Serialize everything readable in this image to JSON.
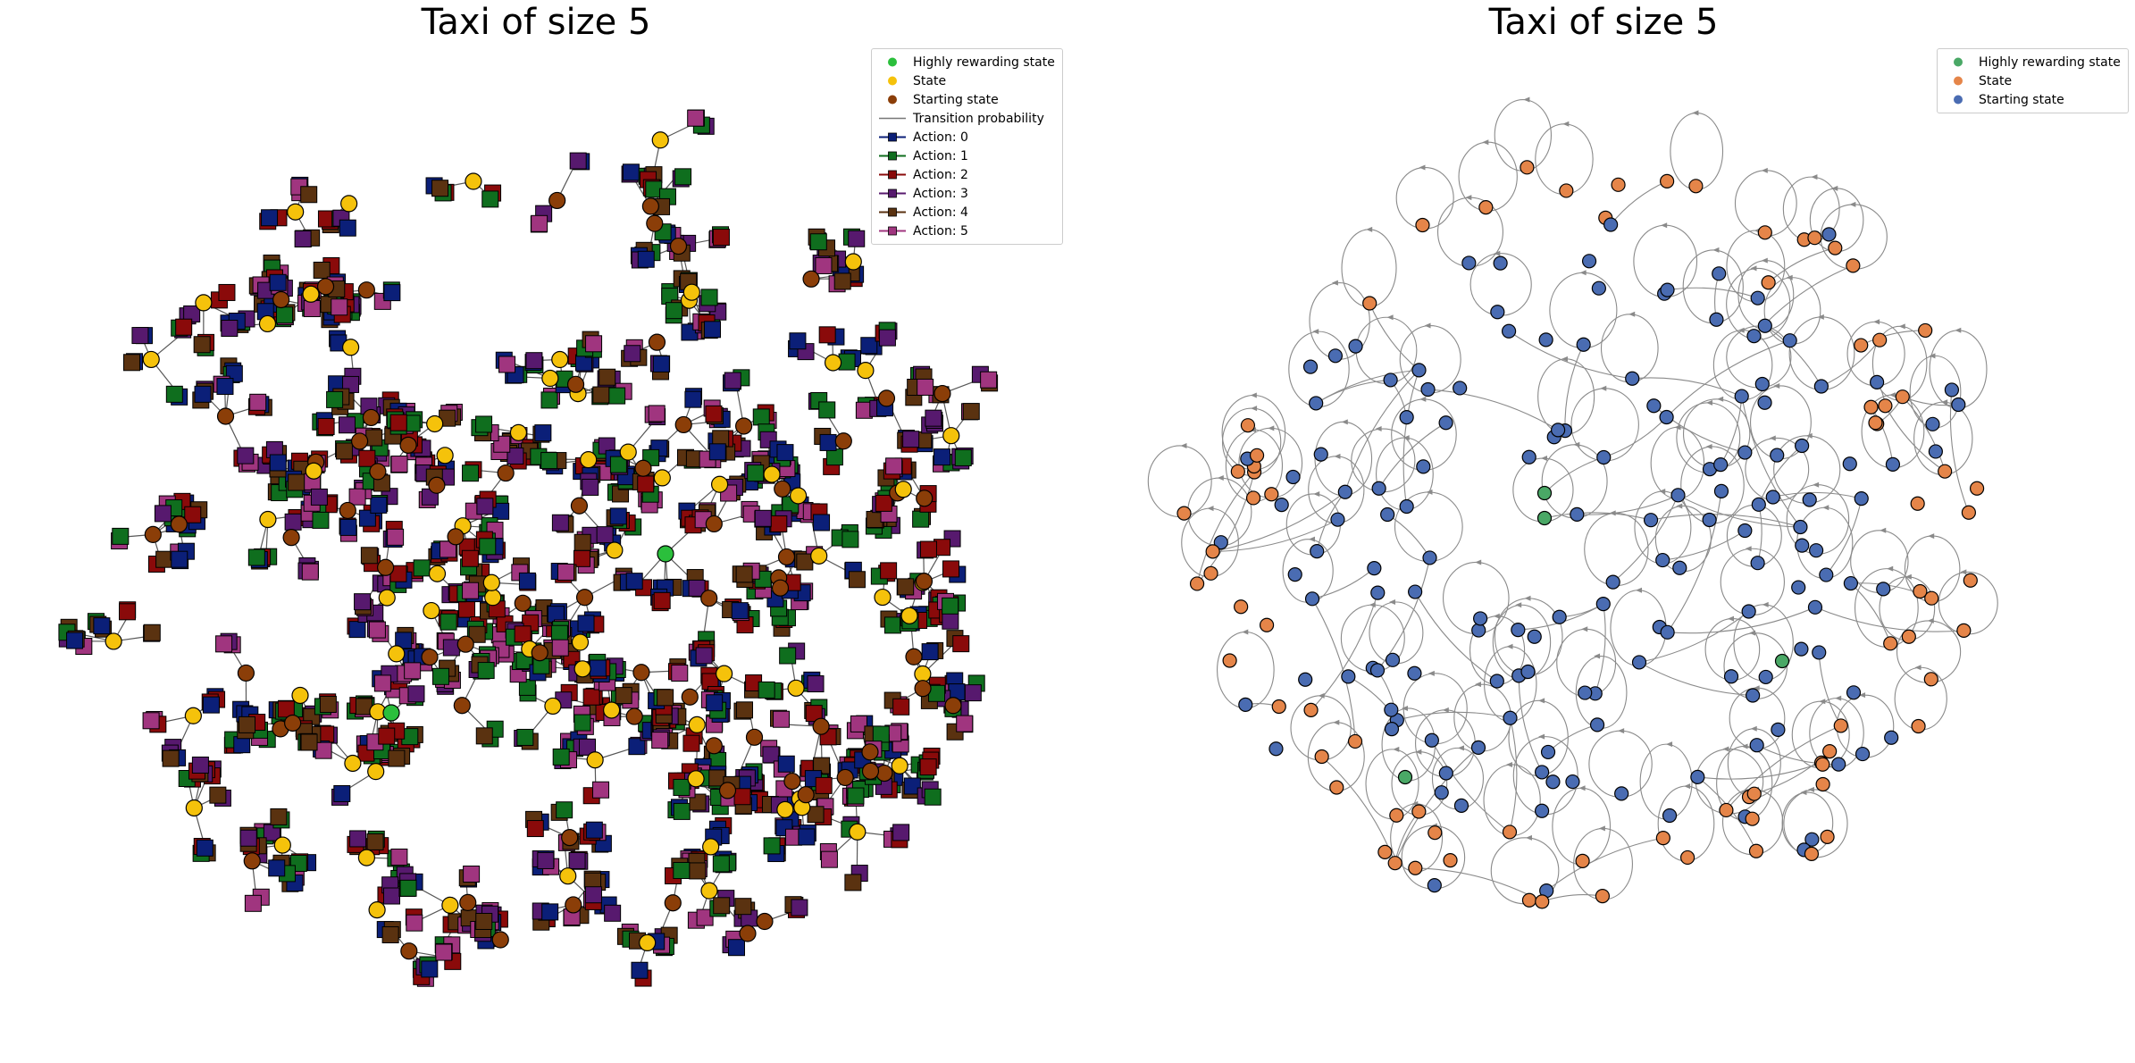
{
  "panels": [
    {
      "title": "Taxi of size 5",
      "legend": [
        {
          "label": "Highly rewarding state",
          "kind": "marker",
          "color": "#2bbf3c"
        },
        {
          "label": "State",
          "kind": "marker",
          "color": "#f5c20b"
        },
        {
          "label": "Starting state",
          "kind": "marker",
          "color": "#8b3e08"
        },
        {
          "label": "Transition probability",
          "kind": "line",
          "color": "#777777"
        },
        {
          "label": "Action: 0",
          "kind": "action",
          "color": "#0b1f78"
        },
        {
          "label": "Action: 1",
          "kind": "action",
          "color": "#0f6e1e"
        },
        {
          "label": "Action: 2",
          "kind": "action",
          "color": "#8a0a0a"
        },
        {
          "label": "Action: 3",
          "kind": "action",
          "color": "#57196e"
        },
        {
          "label": "Action: 4",
          "kind": "action",
          "color": "#5a3210"
        },
        {
          "label": "Action: 5",
          "kind": "action",
          "color": "#a0357f"
        }
      ]
    },
    {
      "title": "Taxi of size 5",
      "legend": [
        {
          "label": "Highly rewarding state",
          "kind": "marker",
          "color": "#4aa866"
        },
        {
          "label": "State",
          "kind": "marker",
          "color": "#e58549"
        },
        {
          "label": "Starting state",
          "kind": "marker",
          "color": "#4a6cb2"
        }
      ]
    }
  ]
}
